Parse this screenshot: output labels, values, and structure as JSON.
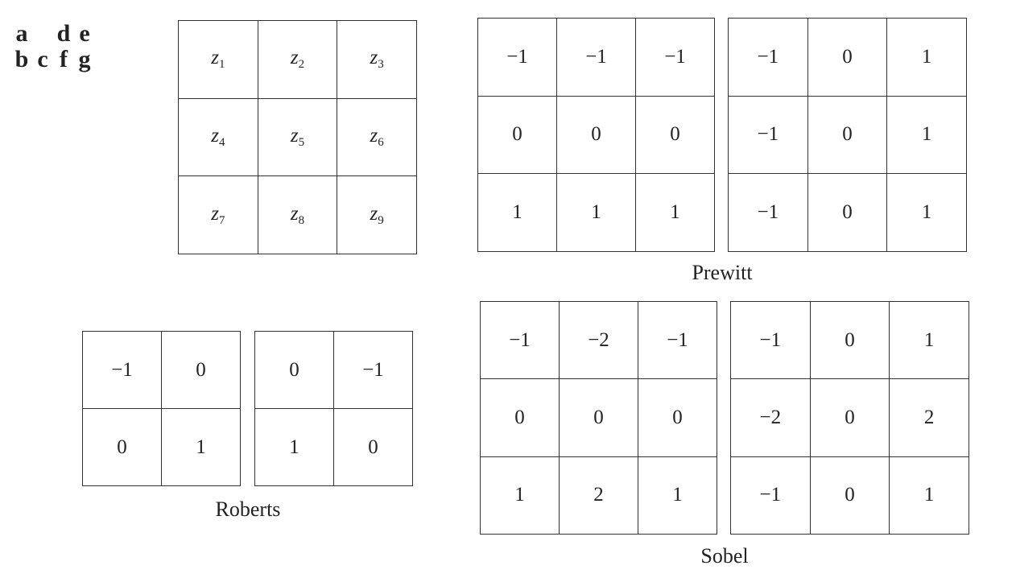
{
  "panel_letters": [
    [
      "a",
      "",
      "d",
      "e"
    ],
    [
      "b",
      "c",
      "f",
      "g"
    ]
  ],
  "neighborhood": {
    "var": "z",
    "rows": [
      [
        "1",
        "2",
        "3"
      ],
      [
        "4",
        "5",
        "6"
      ],
      [
        "7",
        "8",
        "9"
      ]
    ]
  },
  "prewitt": {
    "label": "Prewitt",
    "gx": [
      [
        "−1",
        "−1",
        "−1"
      ],
      [
        "0",
        "0",
        "0"
      ],
      [
        "1",
        "1",
        "1"
      ]
    ],
    "gy": [
      [
        "−1",
        "0",
        "1"
      ],
      [
        "−1",
        "0",
        "1"
      ],
      [
        "−1",
        "0",
        "1"
      ]
    ]
  },
  "roberts": {
    "label": "Roberts",
    "gx": [
      [
        "−1",
        "0"
      ],
      [
        "0",
        "1"
      ]
    ],
    "gy": [
      [
        "0",
        "−1"
      ],
      [
        "1",
        "0"
      ]
    ]
  },
  "sobel": {
    "label": "Sobel",
    "gx": [
      [
        "−1",
        "−2",
        "−1"
      ],
      [
        "0",
        "0",
        "0"
      ],
      [
        "1",
        "2",
        "1"
      ]
    ],
    "gy": [
      [
        "−1",
        "0",
        "1"
      ],
      [
        "−2",
        "0",
        "2"
      ],
      [
        "−1",
        "0",
        "1"
      ]
    ]
  }
}
